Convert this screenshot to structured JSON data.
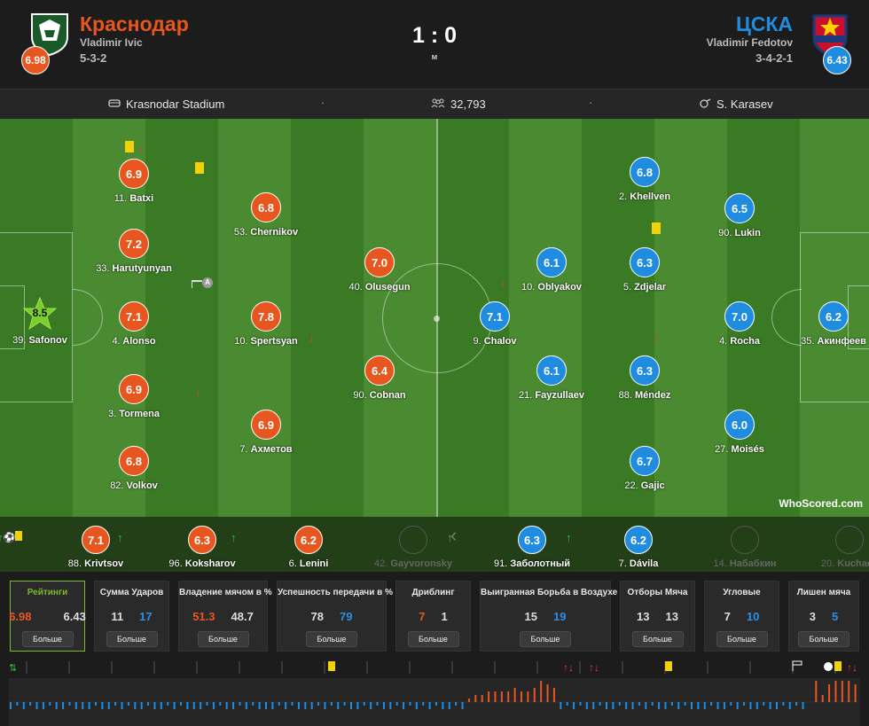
{
  "header": {
    "home": {
      "name": "Краснодар",
      "coach": "Vladimir Ivic",
      "formation": "5-3-2",
      "rating": "6.98",
      "color": "#e8561f"
    },
    "away": {
      "name": "ЦСКА",
      "coach": "Vladimir Fedotov",
      "formation": "3-4-2-1",
      "rating": "6.43",
      "color": "#1f8ce0"
    },
    "score": "1 : 0",
    "status": "м"
  },
  "info": {
    "stadium": "Krasnodar Stadium",
    "attendance": "32,793",
    "referee": "S. Karasev",
    "separator": "·"
  },
  "pitch": {
    "home": [
      {
        "num": "39.",
        "name": "Safonov",
        "rating": "8.5",
        "motm": true
      },
      {
        "num": "11.",
        "name": "Batxi",
        "rating": "6.9",
        "yellow": true,
        "subbed": true
      },
      {
        "num": "33.",
        "name": "Harutyunyan",
        "rating": "7.2"
      },
      {
        "num": "4.",
        "name": "Alonso",
        "rating": "7.1"
      },
      {
        "num": "3.",
        "name": "Tormena",
        "rating": "6.9"
      },
      {
        "num": "82.",
        "name": "Volkov",
        "rating": "6.8"
      },
      {
        "num": "53.",
        "name": "Chernikov",
        "rating": "6.8",
        "yellow": true
      },
      {
        "num": "10.",
        "name": "Spertsyan",
        "rating": "7.8",
        "captain": true
      },
      {
        "num": "7.",
        "name": "Ахметов",
        "rating": "6.9",
        "subbed": true
      },
      {
        "num": "40.",
        "name": "Olusegun",
        "rating": "7.0"
      },
      {
        "num": "90.",
        "name": "Cobnan",
        "rating": "6.4",
        "subbed": true
      }
    ],
    "away": [
      {
        "num": "35.",
        "name": "Акинфеев",
        "rating": "6.2"
      },
      {
        "num": "90.",
        "name": "Lukin",
        "rating": "6.5"
      },
      {
        "num": "4.",
        "name": "Rocha",
        "rating": "7.0"
      },
      {
        "num": "27.",
        "name": "Moisés",
        "rating": "6.0"
      },
      {
        "num": "2.",
        "name": "Khellven",
        "rating": "6.8"
      },
      {
        "num": "5.",
        "name": "Zdjelar",
        "rating": "6.3",
        "yellow": true
      },
      {
        "num": "88.",
        "name": "Méndez",
        "rating": "6.3",
        "subbed": true
      },
      {
        "num": "22.",
        "name": "Gajic",
        "rating": "6.7"
      },
      {
        "num": "10.",
        "name": "Oblyakov",
        "rating": "6.1"
      },
      {
        "num": "21.",
        "name": "Fayzullaev",
        "rating": "6.1"
      },
      {
        "num": "9.",
        "name": "Chalov",
        "rating": "7.1",
        "subbed": true
      }
    ],
    "captain_badge": "A",
    "watermark": "WhoScored.com"
  },
  "subs": {
    "home": [
      {
        "num": "88.",
        "name": "Krivtsov",
        "rating": "7.1"
      },
      {
        "num": "96.",
        "name": "Koksharov",
        "rating": "6.3"
      },
      {
        "num": "6.",
        "name": "Lenini",
        "rating": "6.2"
      },
      {
        "num": "42.",
        "name": "Gayvoronsky",
        "rating": ""
      }
    ],
    "away": [
      {
        "num": "91.",
        "name": "Заболотный",
        "rating": "6.3"
      },
      {
        "num": "7.",
        "name": "Dávila",
        "rating": "6.2"
      },
      {
        "num": "14.",
        "name": "Набабкин",
        "rating": ""
      },
      {
        "num": "20.",
        "name": "Kuchaev",
        "rating": ""
      }
    ]
  },
  "stats": [
    {
      "title": "Рейтинги",
      "home": "6.98",
      "away": "6.43",
      "more": "Больше",
      "active": true
    },
    {
      "title": "Сумма Ударов",
      "home": "11",
      "away": "17",
      "more": "Больше"
    },
    {
      "title": "Владение мячом в %",
      "home": "51.3",
      "away": "48.7",
      "more": "Больше"
    },
    {
      "title": "Успешность передачи в %",
      "home": "78",
      "away": "79",
      "more": "Больше"
    },
    {
      "title": "Дриблинг",
      "home": "7",
      "away": "1",
      "more": "Больше"
    },
    {
      "title": "Выигранная Борьба в Воздухе",
      "home": "15",
      "away": "19",
      "more": "Больше"
    },
    {
      "title": "Отборы Мяча",
      "home": "13",
      "away": "13",
      "more": "Больше"
    },
    {
      "title": "Угловые",
      "home": "7",
      "away": "10",
      "more": "Больше"
    },
    {
      "title": "Лишен мяча",
      "home": "3",
      "away": "5",
      "more": "Больше"
    }
  ],
  "timeline": {
    "home_bars": [
      0,
      0,
      0,
      0,
      0,
      0,
      0,
      0,
      0,
      0,
      0,
      0,
      0,
      0,
      0,
      0,
      0,
      0,
      0,
      0,
      0,
      0,
      0,
      0,
      0,
      0,
      0,
      0,
      0,
      0,
      0,
      0,
      0,
      0,
      0,
      0,
      0,
      0,
      0,
      0,
      0,
      0,
      0,
      0,
      0,
      0,
      0,
      0,
      0,
      0,
      0,
      0,
      0,
      0,
      0,
      0,
      0,
      0,
      0,
      0,
      0,
      0,
      0,
      0,
      0,
      0,
      0,
      0,
      0,
      0,
      1,
      2,
      2,
      3,
      3,
      3,
      3,
      4,
      3,
      3,
      4,
      6,
      5,
      4,
      0,
      0,
      0,
      0,
      0,
      0,
      0,
      0,
      0,
      0,
      0,
      0,
      0,
      0,
      0,
      0,
      0,
      0,
      0,
      0,
      0,
      0,
      0,
      0,
      0,
      0,
      0,
      0,
      0,
      0,
      0,
      0,
      0,
      0,
      0,
      0,
      0,
      0,
      0,
      6,
      2,
      5,
      6,
      6,
      6,
      5
    ],
    "away_bars": [
      2,
      1,
      2,
      1,
      2,
      2,
      1,
      2,
      2,
      1,
      2,
      2,
      2,
      1,
      2,
      2,
      1,
      2,
      1,
      2,
      2,
      1,
      2,
      2,
      1,
      2,
      1,
      2,
      2,
      2,
      1,
      2,
      1,
      2,
      2,
      1,
      2,
      1,
      2,
      2,
      2,
      1,
      2,
      1,
      2,
      2,
      2,
      1,
      2,
      1,
      2,
      1,
      2,
      2,
      1,
      2,
      1,
      2,
      2,
      1,
      2,
      1,
      2,
      1,
      2,
      1,
      2,
      2,
      1,
      2,
      0,
      0,
      0,
      0,
      0,
      0,
      0,
      0,
      0,
      0,
      0,
      0,
      0,
      0,
      2,
      1,
      2,
      1,
      2,
      2,
      1,
      2,
      2,
      1,
      2,
      2,
      1,
      2,
      1,
      2,
      2,
      1,
      2,
      1,
      2,
      2,
      2,
      1,
      2,
      2,
      1,
      2,
      1,
      2,
      2,
      1,
      2,
      2,
      1,
      2,
      1,
      2,
      0,
      0,
      0,
      0,
      0,
      0,
      0
    ],
    "bar_max": 6
  },
  "colors": {
    "home": "#e8561f",
    "away": "#1f8ce0",
    "pitch": "#3b7a25",
    "accent": "#7dba2b"
  }
}
